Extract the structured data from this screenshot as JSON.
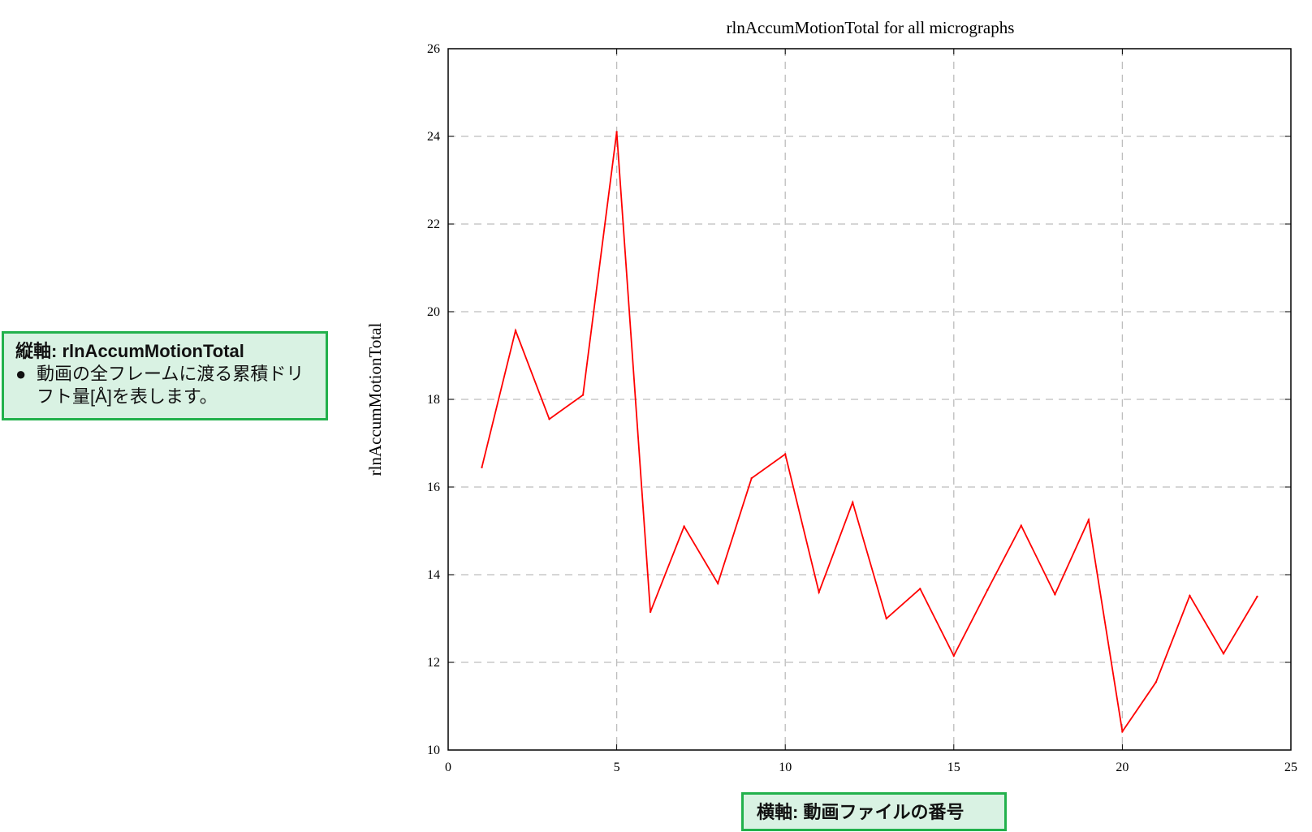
{
  "chart_data": {
    "type": "line",
    "title": "rlnAccumMotionTotal for all micrographs",
    "xlabel": "",
    "ylabel": "rlnAccumMotionTotal",
    "xlim": [
      0,
      25
    ],
    "ylim": [
      10,
      26
    ],
    "xticks": [
      0,
      5,
      10,
      15,
      20,
      25
    ],
    "yticks": [
      10,
      12,
      14,
      16,
      18,
      20,
      22,
      24,
      26
    ],
    "grid": true,
    "series": [
      {
        "color": "#ff0000",
        "x": [
          1,
          2,
          3,
          4,
          5,
          6,
          7,
          8,
          9,
          10,
          11,
          12,
          13,
          14,
          15,
          16,
          17,
          18,
          19,
          20,
          21,
          22,
          23,
          24
        ],
        "y": [
          16.45,
          19.57,
          17.55,
          18.1,
          24.1,
          13.15,
          15.1,
          13.8,
          16.2,
          16.75,
          13.6,
          15.65,
          13.0,
          13.68,
          12.15,
          13.65,
          15.12,
          13.55,
          15.25,
          10.42,
          11.55,
          13.52,
          12.2,
          13.5
        ]
      }
    ]
  },
  "annotations": {
    "y_axis_note": {
      "heading": "縦軸: rlnAccumMotionTotal",
      "bullet": "●",
      "text": "動画の全フレームに渡る累積ドリフト量[Å]を表します。"
    },
    "x_axis_note": {
      "text": "横軸: 動画ファイルの番号"
    }
  }
}
